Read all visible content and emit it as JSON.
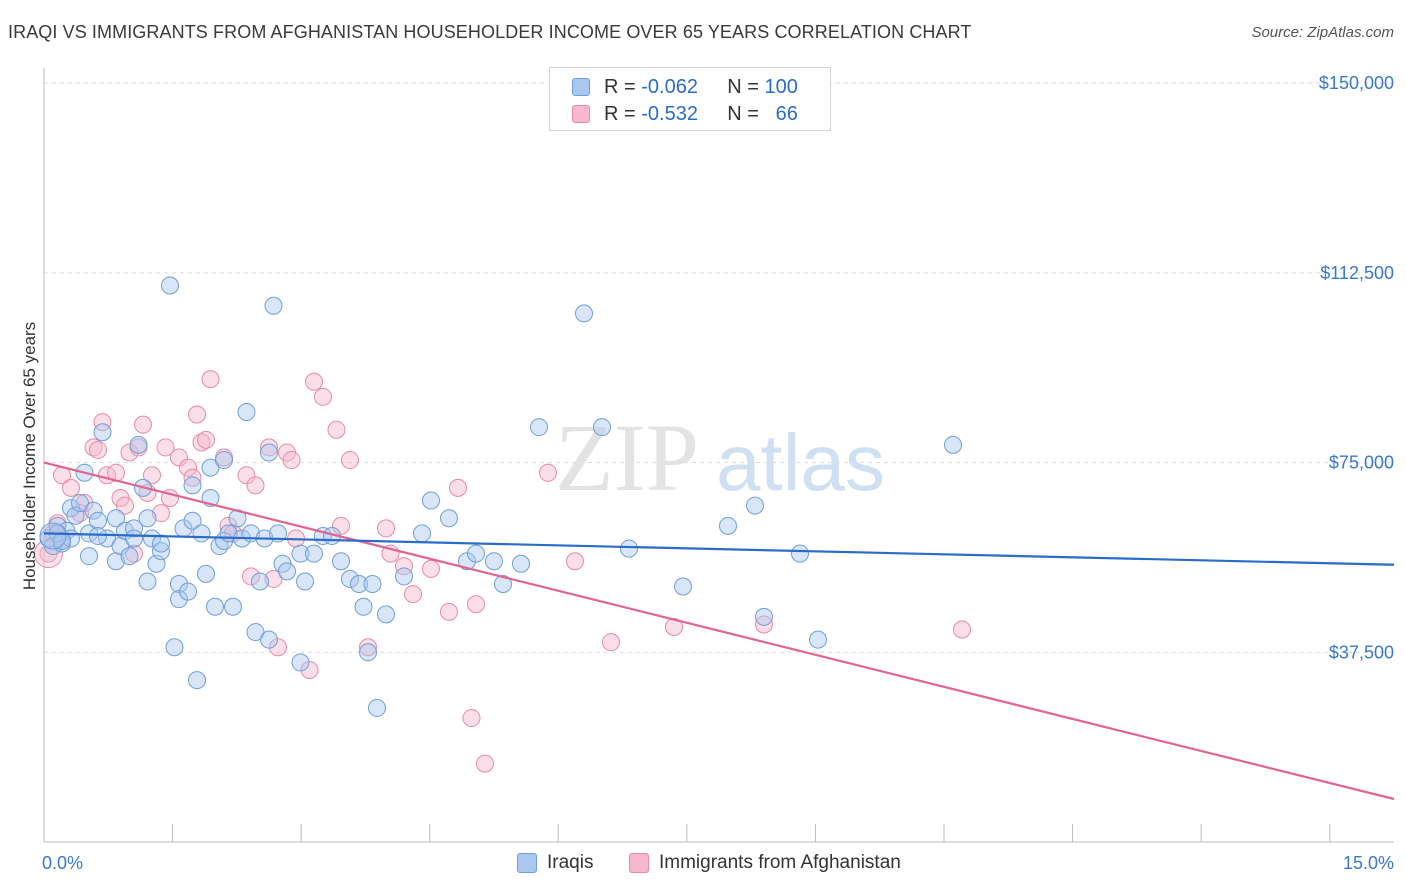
{
  "title": "IRAQI VS IMMIGRANTS FROM AFGHANISTAN HOUSEHOLDER INCOME OVER 65 YEARS CORRELATION CHART",
  "source": "Source: ZipAtlas.com",
  "watermark": {
    "zip": "ZIP",
    "atlas": "atlas"
  },
  "legend": {
    "rows": [
      {
        "r_label": "R =",
        "r_value": "-0.062",
        "n_label": "N =",
        "n_value": "100",
        "color": "#a9c8f0"
      },
      {
        "r_label": "R =",
        "r_value": "-0.532",
        "n_label": "N =",
        "n_value": "66",
        "color": "#f5b8cc"
      }
    ]
  },
  "bottom_legend": [
    "Iraqis",
    "Immigrants from Afghanistan"
  ],
  "colors": {
    "iraqi_fill": "#a9c8f0",
    "iraqi_stroke": "#6f9fd8",
    "iraqi_line": "#2a6cc8",
    "afghan_fill": "#f5b8cc",
    "afghan_stroke": "#e88aa8",
    "afghan_line": "#e0658f",
    "axis_value": "#3a78c9",
    "grid": "#dcdcdc"
  },
  "chart_data": {
    "type": "scatter",
    "title": "IRAQI VS IMMIGRANTS FROM AFGHANISTAN HOUSEHOLDER INCOME OVER 65 YEARS CORRELATION CHART",
    "xlabel": "",
    "ylabel": "Householder Income Over 65 years",
    "xlim": [
      0,
      15
    ],
    "ylim": [
      0,
      153000
    ],
    "x_tick_labels": [
      "0.0%",
      "15.0%"
    ],
    "y_ticks": [
      37500,
      75000,
      112500,
      150000
    ],
    "y_tick_labels": [
      "$37,500",
      "$75,000",
      "$112,500",
      "$150,000"
    ],
    "grid": true,
    "series": [
      {
        "name": "Iraqis",
        "trend": {
          "x": [
            0,
            15
          ],
          "y": [
            61000,
            54800
          ]
        },
        "points": [
          [
            0.05,
            60000
          ],
          [
            0.1,
            58500
          ],
          [
            0.15,
            62500
          ],
          [
            0.2,
            59000
          ],
          [
            0.25,
            61500
          ],
          [
            0.3,
            66000
          ],
          [
            0.35,
            64500
          ],
          [
            0.4,
            67000
          ],
          [
            0.45,
            73000
          ],
          [
            0.5,
            56500
          ],
          [
            0.5,
            61000
          ],
          [
            0.55,
            65500
          ],
          [
            0.6,
            63500
          ],
          [
            0.65,
            81000
          ],
          [
            0.7,
            60000
          ],
          [
            0.8,
            64000
          ],
          [
            0.8,
            55500
          ],
          [
            0.85,
            58500
          ],
          [
            0.9,
            61500
          ],
          [
            0.95,
            56500
          ],
          [
            1.0,
            62000
          ],
          [
            1.05,
            78500
          ],
          [
            1.1,
            70000
          ],
          [
            1.15,
            64000
          ],
          [
            1.15,
            51500
          ],
          [
            1.2,
            60000
          ],
          [
            1.25,
            55000
          ],
          [
            1.3,
            57500
          ],
          [
            1.3,
            59000
          ],
          [
            1.4,
            110000
          ],
          [
            1.45,
            38500
          ],
          [
            1.5,
            51000
          ],
          [
            1.5,
            48000
          ],
          [
            1.55,
            62000
          ],
          [
            1.6,
            49500
          ],
          [
            1.65,
            70500
          ],
          [
            1.65,
            63500
          ],
          [
            1.7,
            32000
          ],
          [
            1.75,
            61000
          ],
          [
            1.8,
            53000
          ],
          [
            1.85,
            74000
          ],
          [
            1.85,
            68000
          ],
          [
            1.9,
            46500
          ],
          [
            1.95,
            58500
          ],
          [
            2.0,
            59500
          ],
          [
            2.0,
            75500
          ],
          [
            2.05,
            61000
          ],
          [
            2.1,
            46500
          ],
          [
            2.15,
            64000
          ],
          [
            2.2,
            60000
          ],
          [
            2.25,
            85000
          ],
          [
            2.3,
            61000
          ],
          [
            2.35,
            41500
          ],
          [
            2.4,
            51500
          ],
          [
            2.45,
            60000
          ],
          [
            2.5,
            77000
          ],
          [
            2.5,
            40000
          ],
          [
            2.55,
            106000
          ],
          [
            2.6,
            61000
          ],
          [
            2.65,
            55000
          ],
          [
            2.7,
            53500
          ],
          [
            2.85,
            35500
          ],
          [
            2.85,
            57000
          ],
          [
            2.9,
            51500
          ],
          [
            3.0,
            57000
          ],
          [
            3.1,
            60500
          ],
          [
            3.2,
            60500
          ],
          [
            3.3,
            55500
          ],
          [
            3.4,
            52000
          ],
          [
            3.5,
            51000
          ],
          [
            3.55,
            46500
          ],
          [
            3.6,
            37500
          ],
          [
            3.65,
            51000
          ],
          [
            3.7,
            26500
          ],
          [
            3.8,
            45000
          ],
          [
            4.0,
            52500
          ],
          [
            4.2,
            61000
          ],
          [
            4.3,
            67500
          ],
          [
            4.5,
            64000
          ],
          [
            4.7,
            55500
          ],
          [
            4.8,
            57000
          ],
          [
            5.0,
            55500
          ],
          [
            5.1,
            51000
          ],
          [
            5.3,
            55000
          ],
          [
            5.5,
            82000
          ],
          [
            6.0,
            104500
          ],
          [
            6.2,
            82000
          ],
          [
            6.5,
            58000
          ],
          [
            7.1,
            50500
          ],
          [
            7.6,
            62500
          ],
          [
            7.9,
            66500
          ],
          [
            8.0,
            44500
          ],
          [
            8.4,
            57000
          ],
          [
            8.6,
            40000
          ],
          [
            10.1,
            78500
          ],
          [
            0.15,
            61000
          ],
          [
            0.3,
            60000
          ],
          [
            0.6,
            60500
          ],
          [
            1.0,
            60000
          ],
          [
            0.2,
            59500
          ]
        ]
      },
      {
        "name": "Immigrants from Afghanistan",
        "trend": {
          "x": [
            0,
            15
          ],
          "y": [
            75000,
            8500
          ]
        },
        "points": [
          [
            0.05,
            57000
          ],
          [
            0.1,
            61000
          ],
          [
            0.15,
            63000
          ],
          [
            0.2,
            60000
          ],
          [
            0.2,
            72500
          ],
          [
            0.3,
            70000
          ],
          [
            0.4,
            65000
          ],
          [
            0.45,
            67000
          ],
          [
            0.55,
            78000
          ],
          [
            0.6,
            77500
          ],
          [
            0.65,
            83000
          ],
          [
            0.7,
            72500
          ],
          [
            0.8,
            73000
          ],
          [
            0.85,
            68000
          ],
          [
            0.9,
            66500
          ],
          [
            0.95,
            77000
          ],
          [
            1.0,
            57000
          ],
          [
            1.05,
            78000
          ],
          [
            1.1,
            82500
          ],
          [
            1.15,
            69000
          ],
          [
            1.2,
            72500
          ],
          [
            1.3,
            65000
          ],
          [
            1.35,
            78000
          ],
          [
            1.4,
            68000
          ],
          [
            1.5,
            76000
          ],
          [
            1.6,
            74000
          ],
          [
            1.65,
            72000
          ],
          [
            1.7,
            84500
          ],
          [
            1.75,
            79000
          ],
          [
            1.8,
            79500
          ],
          [
            1.85,
            91500
          ],
          [
            2.0,
            76000
          ],
          [
            2.05,
            62500
          ],
          [
            2.1,
            61000
          ],
          [
            2.25,
            72500
          ],
          [
            2.3,
            52500
          ],
          [
            2.35,
            70500
          ],
          [
            2.5,
            78000
          ],
          [
            2.55,
            52000
          ],
          [
            2.6,
            38500
          ],
          [
            2.7,
            77000
          ],
          [
            2.75,
            75500
          ],
          [
            2.8,
            60000
          ],
          [
            2.95,
            34000
          ],
          [
            3.0,
            91000
          ],
          [
            3.1,
            88000
          ],
          [
            3.25,
            81500
          ],
          [
            3.3,
            62500
          ],
          [
            3.4,
            75500
          ],
          [
            3.6,
            38500
          ],
          [
            3.8,
            62000
          ],
          [
            3.85,
            57000
          ],
          [
            4.0,
            54500
          ],
          [
            4.1,
            49000
          ],
          [
            4.3,
            54000
          ],
          [
            4.5,
            45500
          ],
          [
            4.6,
            70000
          ],
          [
            4.75,
            24500
          ],
          [
            4.8,
            47000
          ],
          [
            4.9,
            15500
          ],
          [
            5.6,
            73000
          ],
          [
            5.9,
            55500
          ],
          [
            6.3,
            39500
          ],
          [
            7.0,
            42500
          ],
          [
            8.0,
            43000
          ],
          [
            10.2,
            42000
          ]
        ]
      }
    ]
  }
}
